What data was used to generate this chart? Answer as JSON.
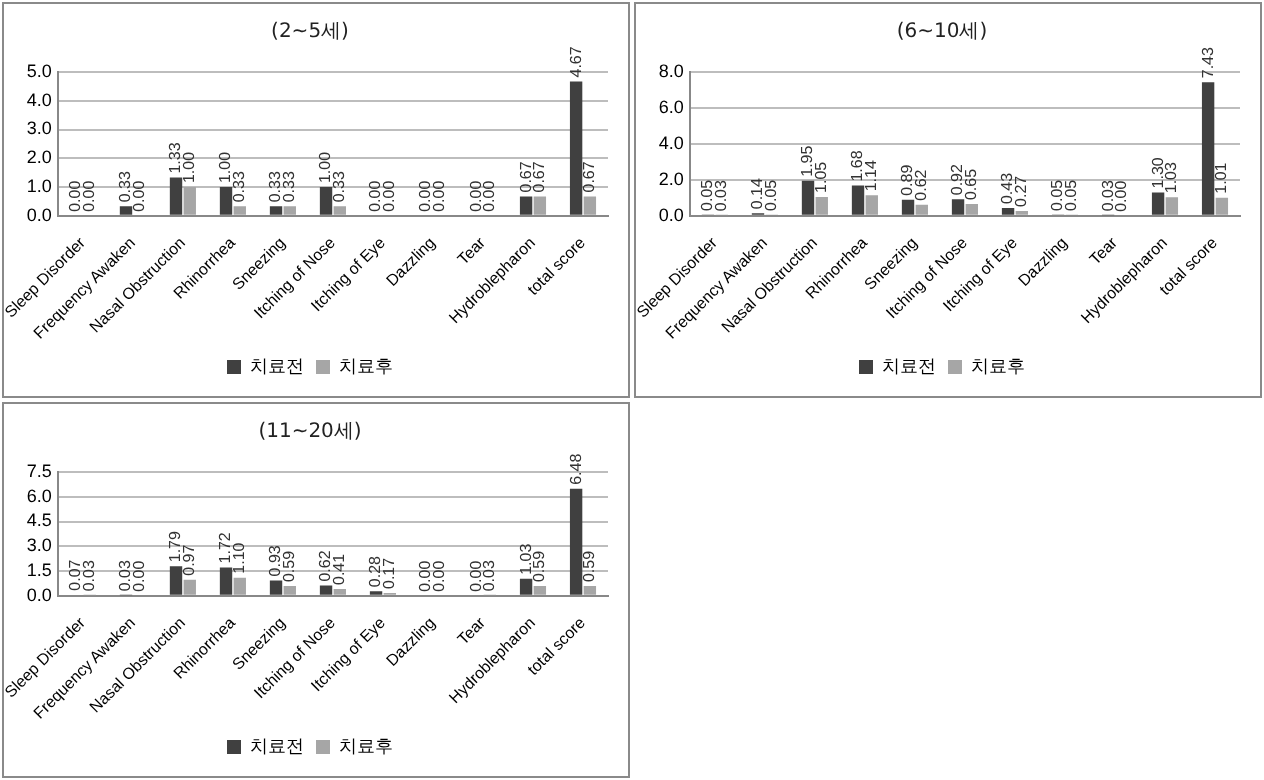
{
  "chart_data": [
    {
      "type": "bar",
      "title": "(2~5세)",
      "categories": [
        "Sleep Disorder",
        "Frequency Awaken",
        "Nasal Obstruction",
        "Rhinorrhea",
        "Sneezing",
        "Itching of Nose",
        "Itching of Eye",
        "Dazzling",
        "Tear",
        "Hydroblepharon",
        "total score"
      ],
      "series": [
        {
          "name": "치료전",
          "color": "#404040",
          "values": [
            0,
            0.33,
            1.33,
            1.0,
            0.33,
            1.0,
            0,
            0,
            0,
            0.67,
            4.67
          ],
          "value_labels": [
            "0.00",
            "0.33",
            "1.33",
            "1.00",
            "0.33",
            "1.00",
            "0.00",
            "0.00",
            "0.00",
            "0.67",
            "4.67"
          ]
        },
        {
          "name": "치료후",
          "color": "#a6a6a6",
          "values": [
            0,
            0,
            1.0,
            0.33,
            0.33,
            0.33,
            0,
            0,
            0,
            0.67,
            0.67
          ],
          "value_labels": [
            "0.00",
            "0.00",
            "1.00",
            "0.33",
            "0.33",
            "0.33",
            "0.00",
            "0.00",
            "0.00",
            "0.67",
            "0.67"
          ]
        }
      ],
      "ylim": [
        0,
        5
      ],
      "yticks": [
        {
          "value": 0,
          "label": "0.0"
        },
        {
          "value": 1,
          "label": "1.0"
        },
        {
          "value": 2,
          "label": "2.0"
        },
        {
          "value": 3,
          "label": "3.0"
        },
        {
          "value": 4,
          "label": "4.0"
        },
        {
          "value": 5,
          "label": "5.0"
        }
      ],
      "grid": "y",
      "legend": "bottom"
    },
    {
      "type": "bar",
      "title": "(6~10세)",
      "categories": [
        "Sleep Disorder",
        "Frequency Awaken",
        "Nasal Obstruction",
        "Rhinorrhea",
        "Sneezing",
        "Itching of Nose",
        "Itching of Eye",
        "Dazzling",
        "Tear",
        "Hydroblepharon",
        "total score"
      ],
      "series": [
        {
          "name": "치료전",
          "color": "#404040",
          "values": [
            0.05,
            0.14,
            1.95,
            1.68,
            0.89,
            0.92,
            0.43,
            0.05,
            0.03,
            1.3,
            7.43
          ],
          "value_labels": [
            "0.05",
            "0.14",
            "1.95",
            "1.68",
            "0.89",
            "0.92",
            "0.43",
            "0.05",
            "0.03",
            "1.30",
            "7.43"
          ]
        },
        {
          "name": "치료후",
          "color": "#a6a6a6",
          "values": [
            0.03,
            0.05,
            1.05,
            1.14,
            0.62,
            0.65,
            0.27,
            0.05,
            0,
            1.03,
            1.01
          ],
          "value_labels": [
            "0.03",
            "0.05",
            "1.05",
            "1.14",
            "0.62",
            "0.65",
            "0.27",
            "0.05",
            "0.00",
            "1.03",
            "1.01"
          ]
        }
      ],
      "ylim": [
        0,
        8
      ],
      "yticks": [
        {
          "value": 0,
          "label": "0.0"
        },
        {
          "value": 2,
          "label": "2.0"
        },
        {
          "value": 4,
          "label": "4.0"
        },
        {
          "value": 6,
          "label": "6.0"
        },
        {
          "value": 8,
          "label": "8.0"
        }
      ],
      "grid": "y",
      "legend": "bottom"
    },
    {
      "type": "bar",
      "title": "(11~20세)",
      "categories": [
        "Sleep Disorder",
        "Frequency Awaken",
        "Nasal Obstruction",
        "Rhinorrhea",
        "Sneezing",
        "Itching of Nose",
        "Itching of Eye",
        "Dazzling",
        "Tear",
        "Hydroblepharon",
        "total score"
      ],
      "series": [
        {
          "name": "치료전",
          "color": "#404040",
          "values": [
            0.07,
            0.03,
            1.79,
            1.72,
            0.93,
            0.62,
            0.28,
            0,
            0,
            1.03,
            6.48
          ],
          "value_labels": [
            "0.07",
            "0.03",
            "1.79",
            "1.72",
            "0.93",
            "0.62",
            "0.28",
            "0.00",
            "0.00",
            "1.03",
            "6.48"
          ]
        },
        {
          "name": "치료후",
          "color": "#a6a6a6",
          "values": [
            0.03,
            0,
            0.97,
            1.1,
            0.59,
            0.41,
            0.17,
            0,
            0.03,
            0.59,
            0.59
          ],
          "value_labels": [
            "0.03",
            "0.00",
            "0.97",
            "1.10",
            "0.59",
            "0.41",
            "0.17",
            "0.00",
            "0.03",
            "0.59",
            "0.59"
          ]
        }
      ],
      "ylim": [
        0,
        7.5
      ],
      "yticks": [
        {
          "value": 0,
          "label": "0.0"
        },
        {
          "value": 1.5,
          "label": "1.5"
        },
        {
          "value": 3,
          "label": "3.0"
        },
        {
          "value": 4.5,
          "label": "4.5"
        },
        {
          "value": 6,
          "label": "6.0"
        },
        {
          "value": 7.5,
          "label": "7.5"
        }
      ],
      "grid": "y",
      "legend": "bottom"
    }
  ]
}
